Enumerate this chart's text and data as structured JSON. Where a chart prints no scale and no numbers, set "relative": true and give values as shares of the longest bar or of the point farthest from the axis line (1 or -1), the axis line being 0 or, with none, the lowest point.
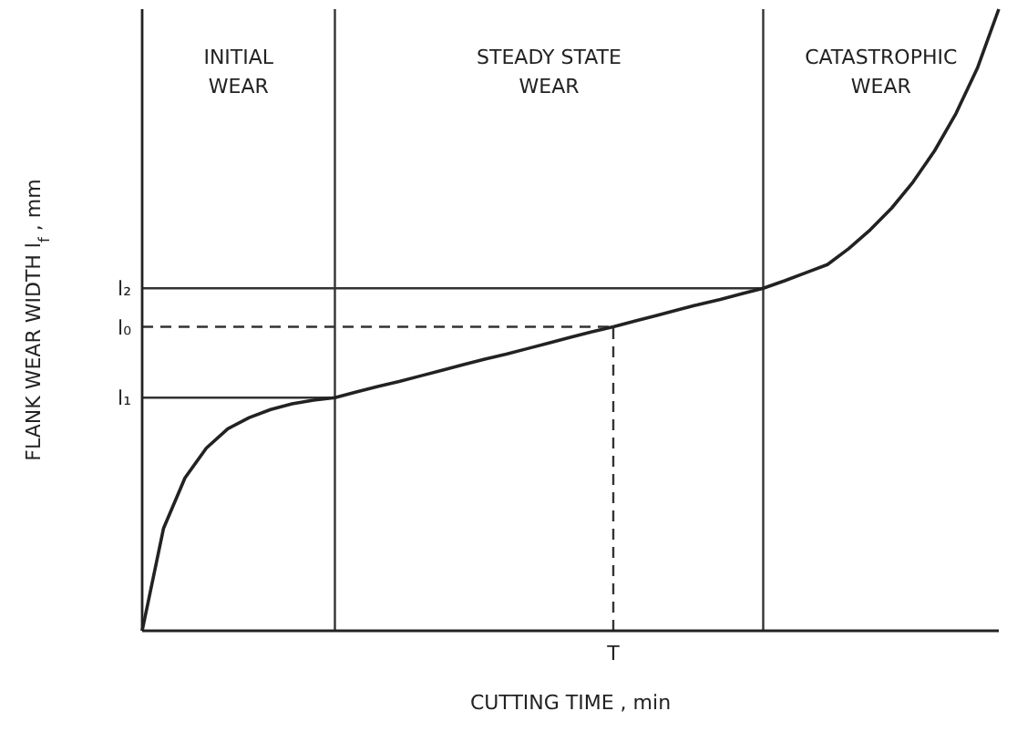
{
  "chart_data": {
    "type": "line",
    "relative": true,
    "xlabel": "CUTTING TIME , min",
    "ylabel": "FLANK WEAR WIDTH  l$_{f}$ , mm",
    "line_style": "solid",
    "categories": [
      null,
      null,
      null,
      null,
      null,
      null,
      null,
      null,
      null,
      null,
      null,
      null,
      null,
      null,
      null,
      null,
      null,
      null,
      null,
      null,
      null,
      null,
      null,
      null,
      null,
      null,
      null,
      null,
      null,
      null,
      null,
      null,
      null,
      null,
      null,
      null,
      null,
      null,
      null,
      null,
      null
    ],
    "series": [
      {
        "color": "#222222",
        "values": [
          0,
          0.165,
          0.246,
          0.294,
          0.325,
          0.343,
          0.356,
          0.365,
          0.371,
          0.375,
          0.384,
          0.393,
          0.401,
          0.41,
          0.419,
          0.428,
          0.437,
          0.445,
          0.454,
          0.463,
          0.472,
          0.481,
          0.489,
          0.498,
          0.507,
          0.516,
          0.525,
          0.533,
          0.542,
          0.551,
          0.563,
          0.576,
          0.589,
          0.615,
          0.645,
          0.68,
          0.722,
          0.772,
          0.832,
          0.905,
          1
        ]
      }
    ],
    "annotations": [
      "INITIAL WEAR",
      "STEADY STATE WEAR",
      "CATASTROPHIC WEAR",
      {
        "text": "T",
        "y": 0.489
      }
    ],
    "ref_lines": [
      {
        "axis": "y",
        "value": 0.551,
        "label": "l₂",
        "line_style": "solid",
        "color": "#333333"
      },
      {
        "axis": "y",
        "value": 0.489,
        "label": "l₀",
        "line_style": "dashed",
        "color": "#333333"
      },
      {
        "axis": "y",
        "value": 0.375,
        "label": "l₁",
        "line_style": "solid",
        "color": "#333333"
      }
    ]
  }
}
